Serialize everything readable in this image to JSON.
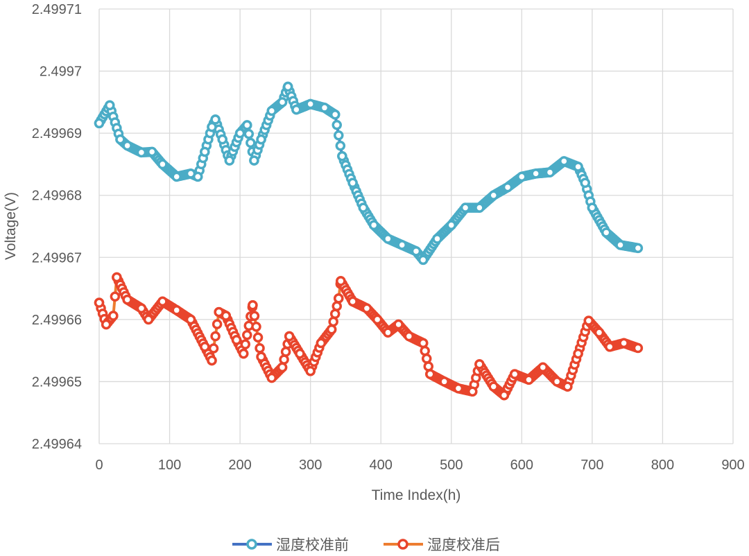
{
  "chart_data": {
    "type": "line",
    "title": "",
    "xlabel": "Time Index(h)",
    "ylabel": "Voltage(V)",
    "xlim": [
      0,
      900
    ],
    "ylim": [
      2.49964,
      2.49971
    ],
    "x_ticks": [
      "0",
      "100",
      "200",
      "300",
      "400",
      "500",
      "600",
      "700",
      "800",
      "900"
    ],
    "y_ticks": [
      "2.49964",
      "2.49965",
      "2.49966",
      "2.49967",
      "2.49968",
      "2.49969",
      "2.4997",
      "2.49971"
    ],
    "grid": true,
    "legend": "bottom",
    "series": [
      {
        "name": "湿度校准前",
        "line_color": "#4472C4",
        "marker_color": "#4BACC6",
        "x": [
          0,
          15,
          30,
          40,
          60,
          75,
          90,
          110,
          130,
          140,
          150,
          160,
          165,
          175,
          185,
          200,
          210,
          220,
          230,
          245,
          260,
          268,
          280,
          300,
          320,
          335,
          345,
          360,
          375,
          390,
          410,
          430,
          450,
          460,
          480,
          500,
          520,
          540,
          560,
          580,
          600,
          620,
          640,
          660,
          680,
          690,
          700,
          720,
          740,
          765
        ],
        "y": [
          2.4996916,
          2.4996945,
          2.499689,
          2.499688,
          2.4996869,
          2.499687,
          2.499685,
          2.499683,
          2.4996835,
          2.499683,
          2.499687,
          2.499691,
          2.4996922,
          2.499689,
          2.4996856,
          2.49969,
          2.4996913,
          2.4996856,
          2.499689,
          2.4996936,
          2.499695,
          2.4996975,
          2.4996938,
          2.4996947,
          2.4996941,
          2.499693,
          2.4996863,
          2.499682,
          2.499678,
          2.4996752,
          2.499673,
          2.499672,
          2.499671,
          2.4996696,
          2.499673,
          2.4996752,
          2.499678,
          2.499678,
          2.49968,
          2.4996813,
          2.499683,
          2.4996835,
          2.4996837,
          2.4996855,
          2.4996846,
          2.499682,
          2.499678,
          2.499674,
          2.499672,
          2.4996715
        ]
      },
      {
        "name": "湿度校准后",
        "line_color": "#ED7D31",
        "marker_color": "#E8452C",
        "x": [
          0,
          10,
          20,
          25,
          40,
          60,
          70,
          90,
          110,
          130,
          150,
          160,
          170,
          180,
          195,
          205,
          218,
          230,
          245,
          260,
          270,
          285,
          300,
          315,
          330,
          340,
          343,
          360,
          380,
          395,
          410,
          425,
          440,
          460,
          470,
          490,
          510,
          530,
          540,
          560,
          575,
          590,
          610,
          630,
          650,
          665,
          680,
          695,
          710,
          725,
          745,
          765
        ],
        "y": [
          2.4996627,
          2.4996592,
          2.4996606,
          2.4996668,
          2.4996632,
          2.4996618,
          2.49966,
          2.4996629,
          2.4996615,
          2.49966,
          2.4996556,
          2.4996534,
          2.4996612,
          2.4996606,
          2.4996567,
          2.4996545,
          2.4996623,
          2.499654,
          2.4996506,
          2.4996523,
          2.4996573,
          2.4996545,
          2.4996517,
          2.4996562,
          2.4996584,
          2.4996634,
          2.4996662,
          2.4996629,
          2.4996618,
          2.49966,
          2.4996579,
          2.4996592,
          2.4996573,
          2.4996562,
          2.4996512,
          2.49965,
          2.4996489,
          2.4996484,
          2.4996528,
          2.4996492,
          2.4996478,
          2.4996512,
          2.4996503,
          2.4996523,
          2.49965,
          2.4996492,
          2.4996545,
          2.4996598,
          2.4996579,
          2.4996556,
          2.4996562,
          2.4996554
        ]
      }
    ]
  }
}
